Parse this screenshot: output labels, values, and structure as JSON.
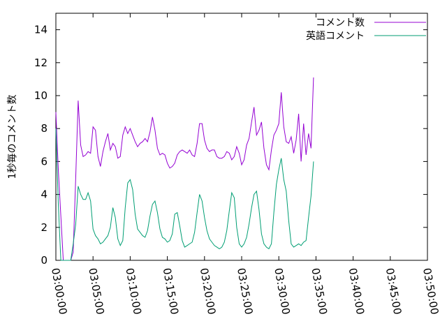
{
  "chart_data": {
    "type": "line",
    "title": "",
    "xlabel": "",
    "ylabel": "1秒毎のコメント数",
    "ylim": [
      0,
      15
    ],
    "xlim_seconds": [
      0,
      3000
    ],
    "x_ticks": [
      "03:00:00",
      "03:05:00",
      "03:10:00",
      "03:15:00",
      "03:20:00",
      "03:25:00",
      "03:30:00",
      "03:35:00",
      "03:40:00",
      "03:45:00",
      "03:50:00"
    ],
    "y_ticks": [
      "0",
      "2",
      "4",
      "6",
      "8",
      "10",
      "12",
      "14"
    ],
    "grid": false,
    "legend_position": "top-right",
    "x_interval_seconds": 20,
    "series": [
      {
        "name": "コメント数",
        "color": "#9400d3",
        "values": [
          9.0,
          5.5,
          2.7,
          0,
          0,
          0,
          0,
          0.5,
          5.0,
          9.7,
          7.0,
          6.3,
          6.4,
          6.6,
          6.5,
          8.1,
          7.9,
          6.3,
          5.7,
          6.6,
          7.2,
          7.7,
          6.7,
          7.1,
          6.9,
          6.2,
          6.3,
          7.6,
          8.1,
          7.7,
          8.0,
          7.6,
          7.2,
          6.9,
          7.1,
          7.2,
          7.4,
          7.2,
          7.8,
          8.7,
          7.9,
          6.8,
          6.4,
          6.5,
          6.4,
          5.9,
          5.6,
          5.7,
          5.9,
          6.4,
          6.6,
          6.7,
          6.6,
          6.5,
          6.7,
          6.4,
          6.3,
          7.1,
          8.3,
          8.3,
          7.3,
          6.8,
          6.6,
          6.7,
          6.7,
          6.3,
          6.2,
          6.2,
          6.3,
          6.6,
          6.5,
          6.1,
          6.3,
          6.9,
          6.5,
          5.8,
          6.1,
          7.0,
          7.4,
          8.4,
          9.3,
          7.6,
          7.9,
          8.4,
          6.8,
          5.8,
          5.5,
          6.7,
          7.6,
          7.9,
          8.3,
          10.2,
          8.1,
          7.2,
          7.1,
          7.5,
          6.5,
          7.3,
          8.9,
          6.0,
          8.3,
          6.4,
          7.7,
          6.8,
          11.1
        ]
      },
      {
        "name": "英語コメント",
        "color": "#009e73",
        "values": [
          8.0,
          3.4,
          0,
          0,
          0,
          0,
          0,
          1.0,
          2.2,
          4.5,
          4.0,
          3.7,
          3.7,
          4.1,
          3.6,
          1.9,
          1.5,
          1.3,
          1.0,
          1.1,
          1.3,
          1.5,
          2.0,
          3.2,
          2.6,
          1.3,
          0.9,
          1.2,
          3.2,
          4.7,
          4.9,
          4.3,
          2.8,
          1.9,
          1.7,
          1.5,
          1.4,
          1.8,
          2.7,
          3.4,
          3.6,
          2.9,
          1.9,
          1.4,
          1.3,
          1.1,
          1.2,
          1.6,
          2.8,
          2.9,
          2.1,
          1.2,
          0.8,
          0.9,
          1.0,
          1.1,
          1.7,
          2.9,
          4.0,
          3.6,
          2.6,
          1.8,
          1.3,
          1.1,
          0.9,
          0.8,
          0.7,
          0.8,
          1.1,
          1.8,
          3.0,
          4.1,
          3.8,
          2.0,
          1.0,
          0.8,
          1.0,
          1.4,
          2.2,
          3.2,
          4.0,
          4.2,
          3.1,
          1.6,
          1.0,
          0.8,
          0.7,
          1.0,
          2.9,
          4.6,
          5.5,
          6.2,
          4.9,
          4.2,
          2.4,
          1.0,
          0.8,
          0.9,
          1.0,
          0.9,
          1.1,
          1.2,
          2.6,
          3.9,
          6.0
        ]
      }
    ]
  }
}
